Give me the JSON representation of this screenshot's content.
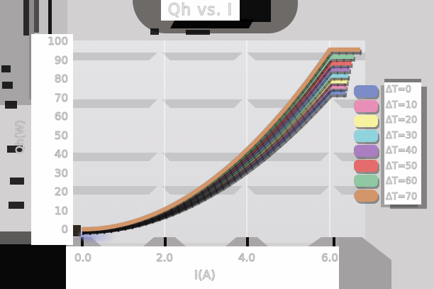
{
  "title": "Qh vs. I",
  "axes": {
    "xlabel": "I(A)",
    "ylabel": "Qh(W)",
    "x_ticks": [
      "0.0",
      "2.0",
      "4.0",
      "6.0"
    ],
    "y_ticks": [
      "100",
      "90",
      "80",
      "70",
      "60",
      "50",
      "40",
      "30",
      "20",
      "10",
      "0"
    ]
  },
  "chart_data": {
    "type": "line",
    "title": "Qh vs. I",
    "xlabel": "I(A)",
    "ylabel": "Qh(W)",
    "xlim": [
      0,
      6.8
    ],
    "ylim": [
      0,
      100
    ],
    "grid": "horizontal-bands",
    "legend_position": "right",
    "x": [
      0,
      1,
      2,
      3,
      4,
      5,
      6
    ],
    "series": [
      {
        "name": "ΔT=0",
        "color": "#7b8cc6",
        "values": [
          0,
          2.0,
          8.1,
          18.2,
          32.4,
          50.6,
          72.8
        ],
        "cap_x": 6.38
      },
      {
        "name": "ΔT=10",
        "color": "#e78fb6",
        "values": [
          0,
          2.1,
          8.4,
          18.9,
          33.7,
          52.6,
          75.8
        ],
        "cap_x": 6.4
      },
      {
        "name": "ΔT=20",
        "color": "#f6f2a0",
        "values": [
          0,
          2.2,
          8.7,
          19.7,
          35.0,
          54.7,
          78.7
        ],
        "cap_x": 6.42
      },
      {
        "name": "ΔT=30",
        "color": "#8fd3dd",
        "values": [
          0,
          2.3,
          9.1,
          20.4,
          36.3,
          56.7,
          81.7
        ],
        "cap_x": 6.45
      },
      {
        "name": "ΔT=40",
        "color": "#a97fc1",
        "values": [
          0,
          2.4,
          9.5,
          21.3,
          37.8,
          59.1,
          85.1
        ],
        "cap_x": 6.48
      },
      {
        "name": "ΔT=50",
        "color": "#e56c6c",
        "values": [
          0,
          2.5,
          9.8,
          22.1,
          39.2,
          61.3,
          88.3
        ],
        "cap_x": 6.52
      },
      {
        "name": "ΔT=60",
        "color": "#8fc8a2",
        "values": [
          0,
          2.5,
          10.2,
          22.9,
          40.8,
          63.7,
          91.7
        ],
        "cap_x": 6.58
      },
      {
        "name": "ΔT=70",
        "color": "#d2966a",
        "values": [
          0,
          2.7,
          10.6,
          23.9,
          42.4,
          66.3,
          95.5
        ],
        "cap_x": 6.74
      }
    ]
  }
}
